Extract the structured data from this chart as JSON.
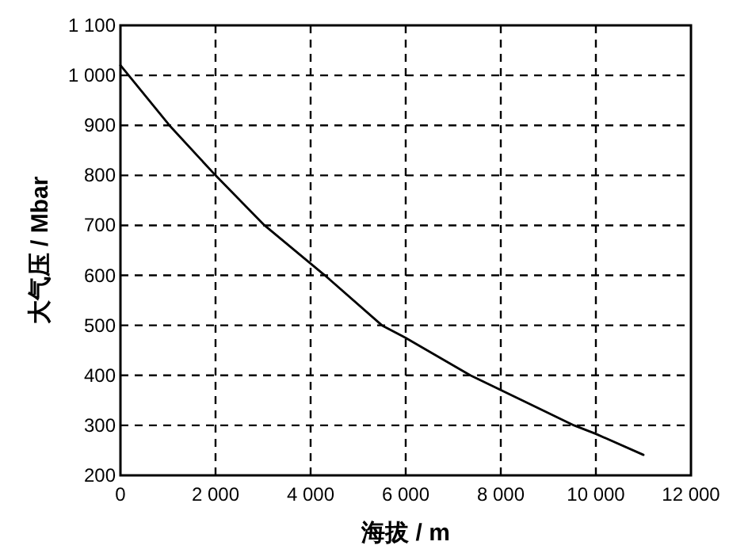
{
  "chart_data": {
    "type": "line",
    "xlabel": "海拔  / m",
    "ylabel": "大气压 / Mbar",
    "x": [
      0,
      1030,
      2000,
      3030,
      4300,
      5500,
      6000,
      7360,
      9540,
      10000,
      11000
    ],
    "series": [
      {
        "color": "#000000",
        "values": [
          1020,
          900,
          800,
          700,
          600,
          500,
          475,
          400,
          300,
          283,
          241
        ]
      }
    ],
    "xlim": [
      0,
      12000
    ],
    "ylim": [
      200,
      1100
    ],
    "xticks": [
      0,
      {
        "value": 2000,
        "label": "2 000"
      },
      {
        "value": 4000,
        "label": "4 000"
      },
      {
        "value": 6000,
        "label": "6 000"
      },
      {
        "value": 8000,
        "label": "8 000"
      },
      {
        "value": 10000,
        "label": "10 000"
      },
      {
        "value": 12000,
        "label": "12 000"
      }
    ],
    "yticks": [
      200,
      300,
      400,
      500,
      600,
      700,
      800,
      900,
      {
        "value": 1000,
        "label": "1 000"
      },
      {
        "value": 1100,
        "label": "1 100"
      }
    ],
    "grid": true,
    "marker": "none",
    "line_style": "solid"
  }
}
